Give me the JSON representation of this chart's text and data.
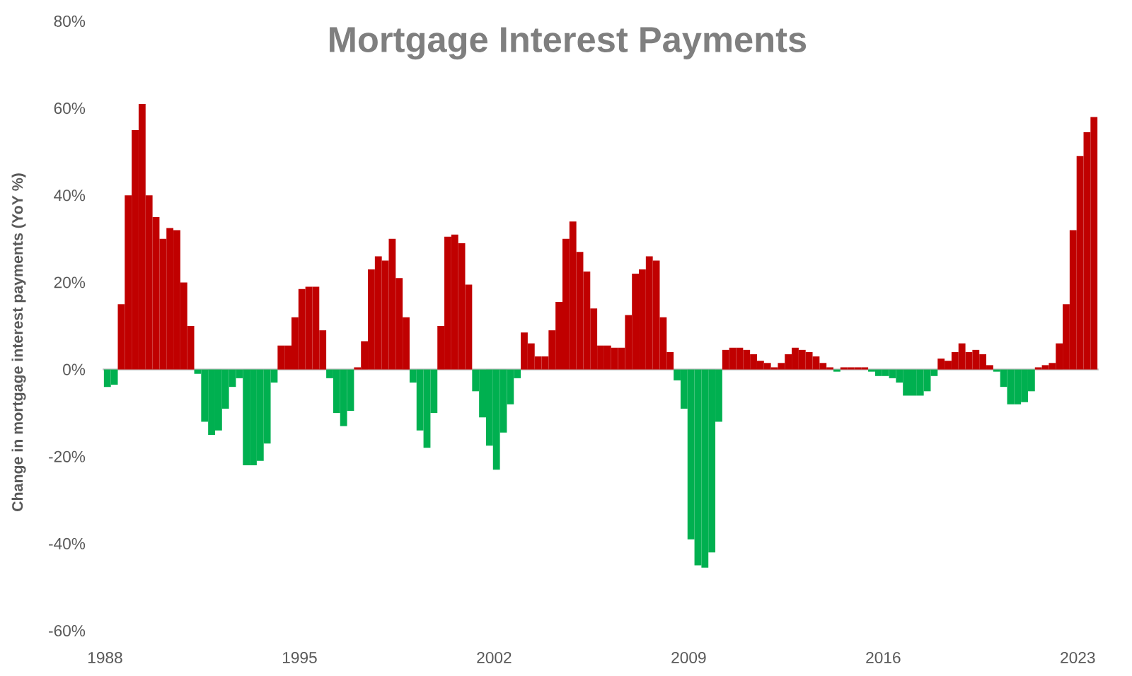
{
  "chart_data": {
    "type": "bar",
    "title": "Mortgage Interest Payments",
    "ylabel": "Change in mortgage interest payments (YoY %)",
    "x": [
      "1988-02",
      "1988-05",
      "1988-08",
      "1988-11",
      "1989-02",
      "1989-05",
      "1989-08",
      "1989-11",
      "1990-02",
      "1990-05",
      "1990-08",
      "1990-11",
      "1991-02",
      "1991-05",
      "1991-08",
      "1991-11",
      "1992-02",
      "1992-05",
      "1992-08",
      "1992-11",
      "1993-02",
      "1993-05",
      "1993-08",
      "1993-11",
      "1994-02",
      "1994-05",
      "1994-08",
      "1994-11",
      "1995-02",
      "1995-05",
      "1995-08",
      "1995-11",
      "1996-02",
      "1996-05",
      "1996-08",
      "1996-11",
      "1997-02",
      "1997-05",
      "1997-08",
      "1997-11",
      "1998-02",
      "1998-05",
      "1998-08",
      "1998-11",
      "1999-02",
      "1999-05",
      "1999-08",
      "1999-11",
      "2000-02",
      "2000-05",
      "2000-08",
      "2000-11",
      "2001-02",
      "2001-05",
      "2001-08",
      "2001-11",
      "2002-02",
      "2002-05",
      "2002-08",
      "2002-11",
      "2003-02",
      "2003-05",
      "2003-08",
      "2003-11",
      "2004-02",
      "2004-05",
      "2004-08",
      "2004-11",
      "2005-02",
      "2005-05",
      "2005-08",
      "2005-11",
      "2006-02",
      "2006-05",
      "2006-08",
      "2006-11",
      "2007-02",
      "2007-05",
      "2007-08",
      "2007-11",
      "2008-02",
      "2008-05",
      "2008-08",
      "2008-11",
      "2009-02",
      "2009-05",
      "2009-08",
      "2009-11",
      "2010-02",
      "2010-05",
      "2010-08",
      "2010-11",
      "2011-02",
      "2011-05",
      "2011-08",
      "2011-11",
      "2012-02",
      "2012-05",
      "2012-08",
      "2012-11",
      "2013-02",
      "2013-05",
      "2013-08",
      "2013-11",
      "2014-02",
      "2014-05",
      "2014-08",
      "2014-11",
      "2015-02",
      "2015-05",
      "2015-08",
      "2015-11",
      "2016-02",
      "2016-05",
      "2016-08",
      "2016-11",
      "2017-02",
      "2017-05",
      "2017-08",
      "2017-11",
      "2018-02",
      "2018-05",
      "2018-08",
      "2018-11",
      "2019-02",
      "2019-05",
      "2019-08",
      "2019-11",
      "2020-02",
      "2020-05",
      "2020-08",
      "2020-11",
      "2021-02",
      "2021-05",
      "2021-08",
      "2021-11",
      "2022-02",
      "2022-05",
      "2022-08",
      "2022-11",
      "2023-02",
      "2023-05",
      "2023-08"
    ],
    "values": [
      -4,
      -3.5,
      15,
      40,
      55,
      61,
      40,
      35,
      30,
      32.5,
      32,
      20,
      10,
      -1,
      -12,
      -15,
      -14,
      -9,
      -4,
      -2,
      -22,
      -22,
      -21,
      -17,
      -3,
      5.5,
      5.5,
      12,
      18.5,
      19,
      19,
      9,
      -2,
      -10,
      -13,
      -9.5,
      0.5,
      6.5,
      23,
      26,
      25,
      30,
      21,
      12,
      -3,
      -14,
      -18,
      -10,
      10,
      30.5,
      31,
      29,
      19.5,
      -5,
      -11,
      -17.5,
      -23,
      -14.5,
      -8,
      -2,
      8.5,
      6,
      3,
      3,
      9,
      15.5,
      30,
      34,
      27,
      22.5,
      14,
      5.5,
      5.5,
      5,
      5,
      12.5,
      22,
      23,
      26,
      25,
      12,
      4,
      -2.5,
      -9,
      -39,
      -45,
      -45.5,
      -42,
      -12,
      4.5,
      5,
      5,
      4.5,
      3.5,
      2,
      1.5,
      0.5,
      1.5,
      3.5,
      5,
      4.5,
      4,
      3,
      1.5,
      0.5,
      -0.5,
      0.5,
      0.5,
      0.5,
      0.5,
      -0.5,
      -1.5,
      -1.5,
      -2,
      -3,
      -6,
      -6,
      -6,
      -5,
      -1.5,
      2.5,
      2,
      4,
      6,
      4,
      4.5,
      3.5,
      1,
      -0.5,
      -4,
      -8,
      -8,
      -7.5,
      -5,
      0.5,
      1,
      1.5,
      6,
      15,
      32,
      49,
      54.5,
      58
    ],
    "colors": [
      "#00b050",
      "#00b050",
      "#c00000",
      "#c00000",
      "#c00000",
      "#c00000",
      "#c00000",
      "#c00000",
      "#c00000",
      "#c00000",
      "#c00000",
      "#c00000",
      "#c00000",
      "#00b050",
      "#00b050",
      "#00b050",
      "#00b050",
      "#00b050",
      "#00b050",
      "#00b050",
      "#00b050",
      "#00b050",
      "#00b050",
      "#00b050",
      "#00b050",
      "#c00000",
      "#c00000",
      "#c00000",
      "#c00000",
      "#c00000",
      "#c00000",
      "#c00000",
      "#00b050",
      "#00b050",
      "#00b050",
      "#00b050",
      "#c00000",
      "#c00000",
      "#c00000",
      "#c00000",
      "#c00000",
      "#c00000",
      "#c00000",
      "#c00000",
      "#00b050",
      "#00b050",
      "#00b050",
      "#00b050",
      "#c00000",
      "#c00000",
      "#c00000",
      "#c00000",
      "#c00000",
      "#00b050",
      "#00b050",
      "#00b050",
      "#00b050",
      "#00b050",
      "#00b050",
      "#00b050",
      "#c00000",
      "#c00000",
      "#c00000",
      "#c00000",
      "#c00000",
      "#c00000",
      "#c00000",
      "#c00000",
      "#c00000",
      "#c00000",
      "#c00000",
      "#c00000",
      "#c00000",
      "#c00000",
      "#c00000",
      "#c00000",
      "#c00000",
      "#c00000",
      "#c00000",
      "#c00000",
      "#c00000",
      "#c00000",
      "#00b050",
      "#00b050",
      "#00b050",
      "#00b050",
      "#00b050",
      "#00b050",
      "#00b050",
      "#c00000",
      "#c00000",
      "#c00000",
      "#c00000",
      "#c00000",
      "#c00000",
      "#c00000",
      "#c00000",
      "#c00000",
      "#c00000",
      "#c00000",
      "#c00000",
      "#c00000",
      "#c00000",
      "#c00000",
      "#c00000",
      "#00b050",
      "#c00000",
      "#c00000",
      "#c00000",
      "#c00000",
      "#00b050",
      "#00b050",
      "#00b050",
      "#00b050",
      "#00b050",
      "#00b050",
      "#00b050",
      "#00b050",
      "#00b050",
      "#00b050",
      "#c00000",
      "#c00000",
      "#c00000",
      "#c00000",
      "#c00000",
      "#c00000",
      "#c00000",
      "#c00000",
      "#00b050",
      "#00b050",
      "#00b050",
      "#00b050",
      "#00b050",
      "#00b050",
      "#c00000",
      "#c00000",
      "#c00000",
      "#c00000",
      "#c00000",
      "#c00000",
      "#c00000",
      "#c00000",
      "#c00000"
    ],
    "xlim": [
      "1987-12",
      "2023-10"
    ],
    "xticks": [
      "1988",
      "1995",
      "2002",
      "2009",
      "2016",
      "2023"
    ],
    "ylim": [
      -60,
      80
    ],
    "yticks": [
      {
        "value": -60,
        "label": "-60%"
      },
      {
        "value": -40,
        "label": "-40%"
      },
      {
        "value": -20,
        "label": "-20%"
      },
      {
        "value": 0,
        "label": "0%"
      },
      {
        "value": 20,
        "label": "20%"
      },
      {
        "value": 40,
        "label": "40%"
      },
      {
        "value": 60,
        "label": "60%"
      },
      {
        "value": 80,
        "label": "80%"
      }
    ]
  }
}
